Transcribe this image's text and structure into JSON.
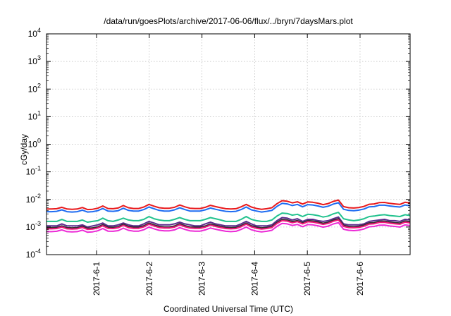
{
  "chart_data": {
    "type": "line",
    "title": "/data/run/goesPlots/archive/2017-06-06/flux/../bryn/7daysMars.plot",
    "xlabel": "Coordinated Universal Time (UTC)",
    "ylabel": "cGy/day",
    "y_scale": "log",
    "ylim": [
      0.0001,
      10000
    ],
    "y_tick_labels": [
      {
        "base": "10",
        "exp": "-4"
      },
      {
        "base": "10",
        "exp": "-3"
      },
      {
        "base": "10",
        "exp": "-2"
      },
      {
        "base": "10",
        "exp": "-1"
      },
      {
        "base": "10",
        "exp": "0"
      },
      {
        "base": "10",
        "exp": "1"
      },
      {
        "base": "10",
        "exp": "2"
      },
      {
        "base": "10",
        "exp": "3"
      },
      {
        "base": "10",
        "exp": "4"
      }
    ],
    "x_tick_labels": [
      "2017-6-1",
      "2017-6-2",
      "2017-6-3",
      "2017-6-4",
      "2017-6-5",
      "2017-6-6"
    ],
    "x_tick_days": [
      1,
      2,
      3,
      4,
      5,
      6
    ],
    "xlim_days": [
      0.05,
      6.95
    ],
    "grid": true,
    "legend": "none",
    "series": [
      {
        "color": "#e8191c",
        "values": [
          0.0045,
          0.0045,
          0.0046,
          0.0052,
          0.0045,
          0.0044,
          0.0045,
          0.0051,
          0.0043,
          0.0044,
          0.0048,
          0.0058,
          0.0047,
          0.0046,
          0.0049,
          0.006,
          0.005,
          0.0047,
          0.0047,
          0.0053,
          0.0066,
          0.0057,
          0.005,
          0.0048,
          0.0048,
          0.0052,
          0.0063,
          0.0054,
          0.0048,
          0.0047,
          0.0047,
          0.0052,
          0.0061,
          0.0055,
          0.005,
          0.0046,
          0.0045,
          0.0046,
          0.0054,
          0.0066,
          0.0053,
          0.0047,
          0.0044,
          0.0046,
          0.005,
          0.007,
          0.009,
          0.0086,
          0.0075,
          0.0082,
          0.0068,
          0.0081,
          0.0079,
          0.0073,
          0.0065,
          0.0071,
          0.0085,
          0.0095,
          0.0055,
          0.005,
          0.0049,
          0.0051,
          0.0056,
          0.0067,
          0.0069,
          0.0077,
          0.0078,
          0.0072,
          0.0069,
          0.0066,
          0.0079,
          0.0074
        ]
      },
      {
        "color": "#1e6cf2",
        "values": [
          0.0036,
          0.0036,
          0.0037,
          0.0042,
          0.0036,
          0.0035,
          0.0036,
          0.0041,
          0.0035,
          0.0036,
          0.0039,
          0.0047,
          0.0038,
          0.0037,
          0.0039,
          0.0048,
          0.004,
          0.0038,
          0.0038,
          0.0043,
          0.0053,
          0.0046,
          0.004,
          0.0038,
          0.0038,
          0.0042,
          0.005,
          0.0043,
          0.0038,
          0.0038,
          0.0038,
          0.0042,
          0.0049,
          0.0044,
          0.004,
          0.0037,
          0.0036,
          0.0037,
          0.0043,
          0.0053,
          0.0042,
          0.0038,
          0.0035,
          0.0037,
          0.004,
          0.0056,
          0.0072,
          0.0069,
          0.006,
          0.0066,
          0.0054,
          0.0065,
          0.0063,
          0.0058,
          0.0052,
          0.0057,
          0.0068,
          0.0076,
          0.0044,
          0.004,
          0.0039,
          0.0041,
          0.0045,
          0.0054,
          0.0055,
          0.0062,
          0.0062,
          0.0058,
          0.0055,
          0.0053,
          0.0063,
          0.0059
        ]
      },
      {
        "color": "#22c28e",
        "values": [
          0.0016,
          0.0016,
          0.0016,
          0.0019,
          0.0016,
          0.0016,
          0.0016,
          0.0018,
          0.0015,
          0.0016,
          0.0017,
          0.0021,
          0.0017,
          0.0016,
          0.0018,
          0.0021,
          0.0018,
          0.0017,
          0.0017,
          0.0019,
          0.0024,
          0.002,
          0.0018,
          0.0017,
          0.0017,
          0.0019,
          0.0022,
          0.0019,
          0.0017,
          0.0017,
          0.0017,
          0.0019,
          0.0022,
          0.002,
          0.0018,
          0.0016,
          0.0016,
          0.0016,
          0.0019,
          0.0024,
          0.0019,
          0.0017,
          0.0016,
          0.0016,
          0.0018,
          0.0025,
          0.0032,
          0.0031,
          0.0027,
          0.0029,
          0.0024,
          0.0029,
          0.0028,
          0.0026,
          0.0023,
          0.0025,
          0.003,
          0.0034,
          0.002,
          0.0018,
          0.0017,
          0.0018,
          0.002,
          0.0024,
          0.0025,
          0.0027,
          0.0028,
          0.0026,
          0.0025,
          0.0024,
          0.0028,
          0.0026
        ]
      },
      {
        "color": "#5a2a8c",
        "values": [
          0.0011,
          0.0011,
          0.0011,
          0.0013,
          0.0011,
          0.0011,
          0.0011,
          0.0012,
          0.001,
          0.0011,
          0.0012,
          0.0014,
          0.0011,
          0.0011,
          0.0012,
          0.0014,
          0.0012,
          0.0011,
          0.0011,
          0.0013,
          0.0016,
          0.0014,
          0.0012,
          0.0012,
          0.0012,
          0.0013,
          0.0015,
          0.0013,
          0.0012,
          0.0011,
          0.0011,
          0.0013,
          0.0015,
          0.0013,
          0.0012,
          0.0011,
          0.0011,
          0.0011,
          0.0013,
          0.0016,
          0.0013,
          0.0011,
          0.0011,
          0.0011,
          0.0012,
          0.0017,
          0.0022,
          0.0021,
          0.0018,
          0.002,
          0.0016,
          0.0019,
          0.0019,
          0.0017,
          0.0016,
          0.0017,
          0.002,
          0.0023,
          0.0013,
          0.0012,
          0.0012,
          0.0012,
          0.0013,
          0.0016,
          0.0017,
          0.0018,
          0.0019,
          0.0017,
          0.0017,
          0.0016,
          0.0019,
          0.0018
        ]
      },
      {
        "color": "#3a2c34",
        "values": [
          0.00095,
          0.00095,
          0.00097,
          0.0011,
          0.00095,
          0.00093,
          0.00095,
          0.00107,
          0.00091,
          0.00093,
          0.00101,
          0.00122,
          0.00099,
          0.00097,
          0.00103,
          0.00126,
          0.00105,
          0.00099,
          0.00099,
          0.00111,
          0.00139,
          0.0012,
          0.00105,
          0.00101,
          0.00101,
          0.00109,
          0.00132,
          0.00113,
          0.00101,
          0.00099,
          0.00099,
          0.00109,
          0.00128,
          0.00116,
          0.00105,
          0.00097,
          0.00095,
          0.00097,
          0.00113,
          0.00139,
          0.00111,
          0.00099,
          0.00093,
          0.00097,
          0.00105,
          0.00147,
          0.00189,
          0.00181,
          0.00158,
          0.00172,
          0.00143,
          0.0017,
          0.00166,
          0.00153,
          0.00137,
          0.00149,
          0.00179,
          0.002,
          0.00116,
          0.00105,
          0.00103,
          0.00107,
          0.00118,
          0.00141,
          0.00145,
          0.00162,
          0.00164,
          0.00151,
          0.00145,
          0.00139,
          0.00166,
          0.00155
        ]
      },
      {
        "color": "#f0197a",
        "values": [
          0.00086,
          0.00086,
          0.00088,
          0.001,
          0.00086,
          0.00084,
          0.00086,
          0.00097,
          0.00082,
          0.00084,
          0.00092,
          0.00111,
          0.0009,
          0.00088,
          0.00094,
          0.00115,
          0.00096,
          0.0009,
          0.0009,
          0.00101,
          0.00126,
          0.00109,
          0.00096,
          0.00092,
          0.00092,
          0.00099,
          0.0012,
          0.00103,
          0.00092,
          0.0009,
          0.0009,
          0.00099,
          0.00117,
          0.00105,
          0.00096,
          0.00088,
          0.00086,
          0.00088,
          0.00103,
          0.00126,
          0.00101,
          0.0009,
          0.00084,
          0.00088,
          0.00096,
          0.00134,
          0.00172,
          0.00164,
          0.00143,
          0.00157,
          0.0013,
          0.00155,
          0.00151,
          0.00139,
          0.00124,
          0.00136,
          0.00162,
          0.00181,
          0.00105,
          0.00096,
          0.00094,
          0.00097,
          0.00107,
          0.00128,
          0.00132,
          0.00147,
          0.00149,
          0.00138,
          0.00132,
          0.00126,
          0.00151,
          0.00141
        ]
      },
      {
        "color": "#ec2ad6",
        "values": [
          0.00068,
          0.00068,
          0.0007,
          0.00079,
          0.00068,
          0.00067,
          0.00068,
          0.00077,
          0.00065,
          0.00067,
          0.00073,
          0.00088,
          0.00071,
          0.0007,
          0.00074,
          0.00091,
          0.00076,
          0.00071,
          0.00071,
          0.0008,
          0.001,
          0.00086,
          0.00076,
          0.00073,
          0.00073,
          0.00079,
          0.00095,
          0.00082,
          0.00073,
          0.00071,
          0.00071,
          0.00079,
          0.00092,
          0.00083,
          0.00076,
          0.0007,
          0.00068,
          0.0007,
          0.00082,
          0.001,
          0.0008,
          0.00071,
          0.00067,
          0.0007,
          0.00076,
          0.00106,
          0.00136,
          0.0013,
          0.00114,
          0.00124,
          0.00103,
          0.00123,
          0.0012,
          0.00111,
          0.00099,
          0.00108,
          0.00129,
          0.00144,
          0.00083,
          0.00076,
          0.00074,
          0.00077,
          0.00085,
          0.00102,
          0.00105,
          0.00117,
          0.00118,
          0.00109,
          0.00105,
          0.001,
          0.0012,
          0.00112
        ]
      }
    ]
  }
}
